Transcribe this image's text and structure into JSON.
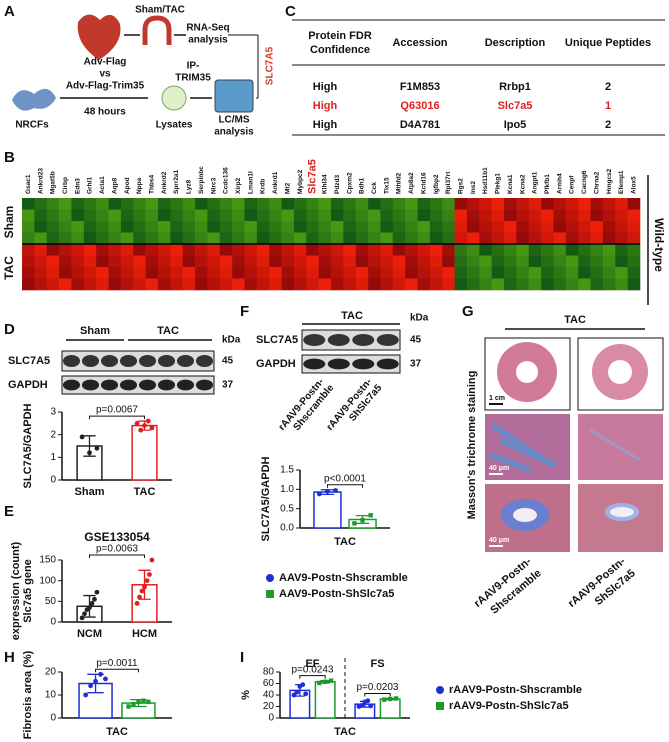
{
  "panel_labels": [
    "A",
    "B",
    "C",
    "D",
    "E",
    "F",
    "G",
    "H",
    "I"
  ],
  "schematic": {
    "sham_tac": "Sham/TAC",
    "rna_seq": [
      "RNA-Seq",
      "analysis"
    ],
    "adv": [
      "Adv-Flag",
      "vs",
      "Adv-Flag-Trim35"
    ],
    "hours": "48 hours",
    "ip": [
      "IP-",
      "TRIM35"
    ],
    "cells": "NRCFs",
    "lysates": "Lysates",
    "lcms": [
      "LC/MS",
      "analysis"
    ],
    "result": "SLC7A5"
  },
  "table": {
    "header": [
      [
        "Protein FDR",
        "Confidence"
      ],
      "Accession",
      "Description",
      "Unique Peptides"
    ],
    "rows": [
      [
        "High",
        "F1M853",
        "Rrbp1",
        2
      ],
      [
        "High",
        "Q63016",
        "Slc7a5",
        1
      ],
      [
        "High",
        "D4A781",
        "Ipo5",
        2
      ]
    ]
  },
  "heatmap": {
    "genes": [
      "Gsac1",
      "Ankrd23",
      "Mgat5b",
      "Cirbp",
      "Edn3",
      "Grhl1",
      "Acta1",
      "Aqp8",
      "Apod",
      "Nppa",
      "Thbs4",
      "Ankrd2",
      "Sprr2a1",
      "Lyz8",
      "Serpinbc",
      "Nlrc3",
      "Ccdc136",
      "Xirp2",
      "Lman1l",
      "Krdb",
      "Ankrd1",
      "Mt2",
      "Mybpc2",
      "Slc7a5",
      "Klhl34",
      "Pdzd3",
      "Cpxm2",
      "Bdh1",
      "Cck",
      "Tlx15",
      "Mthfd2",
      "Atp8a2",
      "Kctd16",
      "Igfbp2",
      "Rpl37rt",
      "Rgs2",
      "Ins2",
      "Hsd11b1",
      "Plekg1",
      "Kcna1",
      "Kcna2",
      "Angpt1",
      "Pfkfb1",
      "Armh4",
      "Cenpf",
      "Cacng6",
      "Chrna2",
      "Hmgcs2",
      "Efemp1",
      "Alox5"
    ],
    "groups": [
      "Sham",
      "TAC"
    ],
    "genotype": "Wild-type"
  },
  "blot_d": {
    "groups": [
      "Sham",
      "TAC"
    ],
    "kda": "kDa",
    "rows": [
      "SLC7A5",
      "GAPDH"
    ],
    "sizes": [
      45,
      37
    ]
  },
  "blot_f": {
    "title": "TAC",
    "kda": "kDa",
    "rows": [
      "SLC7A5",
      "GAPDH"
    ],
    "sizes": [
      45,
      37
    ],
    "lanes": [
      [
        "rAAV9-Postn-",
        "Shscramble"
      ],
      [
        "rAAV9-Postn-",
        "ShSlc7a5"
      ]
    ]
  },
  "histology": {
    "title": "TAC",
    "stain": "Masson's trichrome staining",
    "scale_bars": [
      "1 cm",
      "40 μm",
      "40 μm"
    ],
    "lanes": [
      [
        "rAAV9-Postn-",
        "Shscramble"
      ],
      [
        "rAAV9-Postn-",
        "ShSlc7a5"
      ]
    ]
  },
  "chart_data": [
    {
      "type": "bar",
      "categories": [
        "Sham",
        "TAC"
      ],
      "ylabel": [
        "SLC7A5/GAPDH"
      ],
      "ylim": [
        0,
        3
      ],
      "yticks": [
        0,
        1,
        2,
        3
      ],
      "series": [
        {
          "colors": [
            "#222222",
            "#e02020"
          ],
          "values": [
            1.5,
            2.4
          ],
          "errors": [
            0.45,
            0.2
          ],
          "points": [
            [
              1.9,
              1.2,
              1.4
            ],
            [
              2.5,
              2.2,
              2.4,
              2.6,
              2.3
            ]
          ]
        }
      ],
      "annotations": [
        "p=0.0067"
      ]
    },
    {
      "type": "bar",
      "title": "GSE133054",
      "categories": [
        "NCM",
        "HCM"
      ],
      "ylabel": [
        "Slc7a5 gene",
        "expression (count)"
      ],
      "ylim": [
        0,
        150
      ],
      "yticks": [
        0,
        50,
        100,
        150
      ],
      "series": [
        {
          "colors": [
            "#222222",
            "#e02020"
          ],
          "values": [
            38,
            90
          ],
          "errors": [
            26,
            35
          ],
          "points": [
            [
              10,
              20,
              30,
              35,
              45,
              55,
              72
            ],
            [
              45,
              60,
              75,
              85,
              100,
              115,
              150
            ]
          ]
        }
      ],
      "annotations": [
        "p=0.0063"
      ]
    },
    {
      "type": "bar",
      "xlabel": "TAC",
      "ylabel": [
        "SLC7A5/GAPDH"
      ],
      "ylim": [
        0,
        1.5
      ],
      "yticks": [
        {
          "value": 0,
          "label": "0.0"
        },
        {
          "value": 0.5,
          "label": "0.5"
        },
        {
          "value": 1,
          "label": "1.0"
        },
        {
          "value": 1.5,
          "label": "1.5"
        }
      ],
      "series": [
        {
          "name": "AAV9-Postn-Shscramble",
          "color": "#1f2fd8",
          "values": [
            0.93
          ],
          "errors": [
            0.06
          ],
          "points": [
            [
              0.88,
              0.95,
              0.97
            ]
          ]
        },
        {
          "name": "AAV9-Postn-ShSlc7a5",
          "color": "#1c9a2c",
          "values": [
            0.22
          ],
          "errors": [
            0.1
          ],
          "points": [
            [
              0.12,
              0.2,
              0.33
            ]
          ]
        }
      ],
      "annotations": [
        "p<0.0001"
      ]
    },
    {
      "type": "bar",
      "xlabel": "TAC",
      "ylabel": [
        "Fibrosis area (%)"
      ],
      "ylim": [
        0,
        20
      ],
      "yticks": [
        0,
        10,
        20
      ],
      "series": [
        {
          "color": "#1f2fd8",
          "values": [
            15
          ],
          "errors": [
            4
          ],
          "points": [
            [
              10,
              14,
              16,
              19,
              17
            ]
          ]
        },
        {
          "color": "#1c9a2c",
          "values": [
            6.5
          ],
          "errors": [
            1.5
          ],
          "points": [
            [
              5,
              6,
              7,
              7.5,
              7
            ]
          ]
        }
      ],
      "annotations": [
        "p=0.0011"
      ]
    },
    {
      "type": "bar",
      "categories": [
        "EF",
        "FS"
      ],
      "xlabel": "TAC",
      "ylabel": [
        "%"
      ],
      "ylim": [
        0,
        80
      ],
      "yticks": [
        0,
        20,
        40,
        60,
        80
      ],
      "series": [
        {
          "name": "rAAV9-Postn-Shscramble",
          "color": "#1f2fd8",
          "values": [
            48,
            24
          ],
          "errors": [
            10,
            5
          ],
          "points": [
            [
              40,
              45,
              55,
              58,
              42
            ],
            [
              20,
              22,
              28,
              30,
              21
            ]
          ]
        },
        {
          "name": "rAAV9-Postn-ShSlc7a5",
          "color": "#1c9a2c",
          "values": [
            63,
            33
          ],
          "errors": [
            2,
            1
          ],
          "points": [
            [
              61,
              63,
              65
            ],
            [
              32,
              33,
              34
            ]
          ]
        }
      ],
      "annotations": [
        "p=0.0243",
        "p=0.0203"
      ]
    }
  ]
}
